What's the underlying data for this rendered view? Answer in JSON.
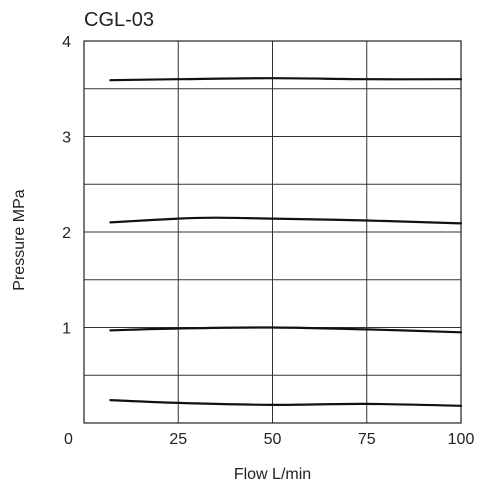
{
  "chart_data": {
    "type": "line",
    "title": "CGL-03",
    "xlabel": "Flow  L/min",
    "ylabel": "Pressure  MPa",
    "xlim": [
      0,
      100
    ],
    "ylim": [
      0,
      4
    ],
    "x_ticks": [
      25,
      50,
      75,
      100
    ],
    "x_tick_labels": [
      "25",
      "50",
      "75",
      "100"
    ],
    "origin_label": "0",
    "y_ticks": [
      1,
      2,
      3,
      4
    ],
    "y_tick_labels": [
      "1",
      "2",
      "3",
      "4"
    ],
    "grid": true,
    "grid_x": [
      25,
      50,
      75
    ],
    "grid_y": [
      0.5,
      1,
      1.5,
      2,
      2.5,
      3,
      3.5
    ],
    "series": [
      {
        "x": [
          7,
          25,
          50,
          75,
          100
        ],
        "values": [
          3.59,
          3.6,
          3.61,
          3.6,
          3.6
        ]
      },
      {
        "x": [
          7,
          25,
          35,
          50,
          75,
          100
        ],
        "values": [
          2.1,
          2.14,
          2.15,
          2.14,
          2.12,
          2.09
        ]
      },
      {
        "x": [
          7,
          25,
          50,
          75,
          100
        ],
        "values": [
          0.97,
          0.99,
          1.0,
          0.98,
          0.95
        ]
      },
      {
        "x": [
          7,
          25,
          50,
          75,
          100
        ],
        "values": [
          0.24,
          0.21,
          0.19,
          0.2,
          0.18
        ]
      }
    ]
  }
}
